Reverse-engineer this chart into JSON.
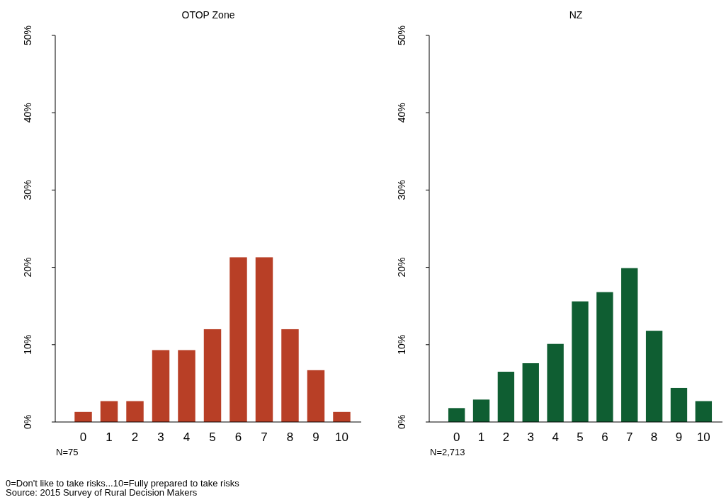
{
  "chart_data": [
    {
      "type": "bar",
      "title": "OTOP Zone",
      "categories": [
        "0",
        "1",
        "2",
        "3",
        "4",
        "5",
        "6",
        "7",
        "8",
        "9",
        "10"
      ],
      "values": [
        1.3,
        2.7,
        2.7,
        9.3,
        9.3,
        12,
        21.3,
        21.3,
        12,
        6.7,
        1.3
      ],
      "color": "#b83f26",
      "ylim": [
        0,
        50
      ],
      "yticks": [
        {
          "value": 0,
          "label": "0%"
        },
        {
          "value": 10,
          "label": "10%"
        },
        {
          "value": 20,
          "label": "20%"
        },
        {
          "value": 30,
          "label": "30%"
        },
        {
          "value": 40,
          "label": "40%"
        },
        {
          "value": 50,
          "label": "50%"
        }
      ],
      "annotations": [
        "N=75",
        "0=Don't like to take risks...10=Fully prepared to take risks",
        "Source: 2015 Survey of Rural Decision Makers"
      ]
    },
    {
      "type": "bar",
      "title": "NZ",
      "categories": [
        "0",
        "1",
        "2",
        "3",
        "4",
        "5",
        "6",
        "7",
        "8",
        "9",
        "10"
      ],
      "values": [
        1.8,
        2.9,
        6.5,
        7.6,
        10.1,
        15.6,
        16.8,
        19.9,
        11.8,
        4.4,
        2.7
      ],
      "color": "#0f5e32",
      "ylim": [
        0,
        50
      ],
      "yticks": [
        {
          "value": 0,
          "label": "0%"
        },
        {
          "value": 10,
          "label": "10%"
        },
        {
          "value": 20,
          "label": "20%"
        },
        {
          "value": 30,
          "label": "30%"
        },
        {
          "value": 40,
          "label": "40%"
        },
        {
          "value": 50,
          "label": "50%"
        }
      ],
      "annotations": [
        "N=2,713"
      ]
    }
  ]
}
